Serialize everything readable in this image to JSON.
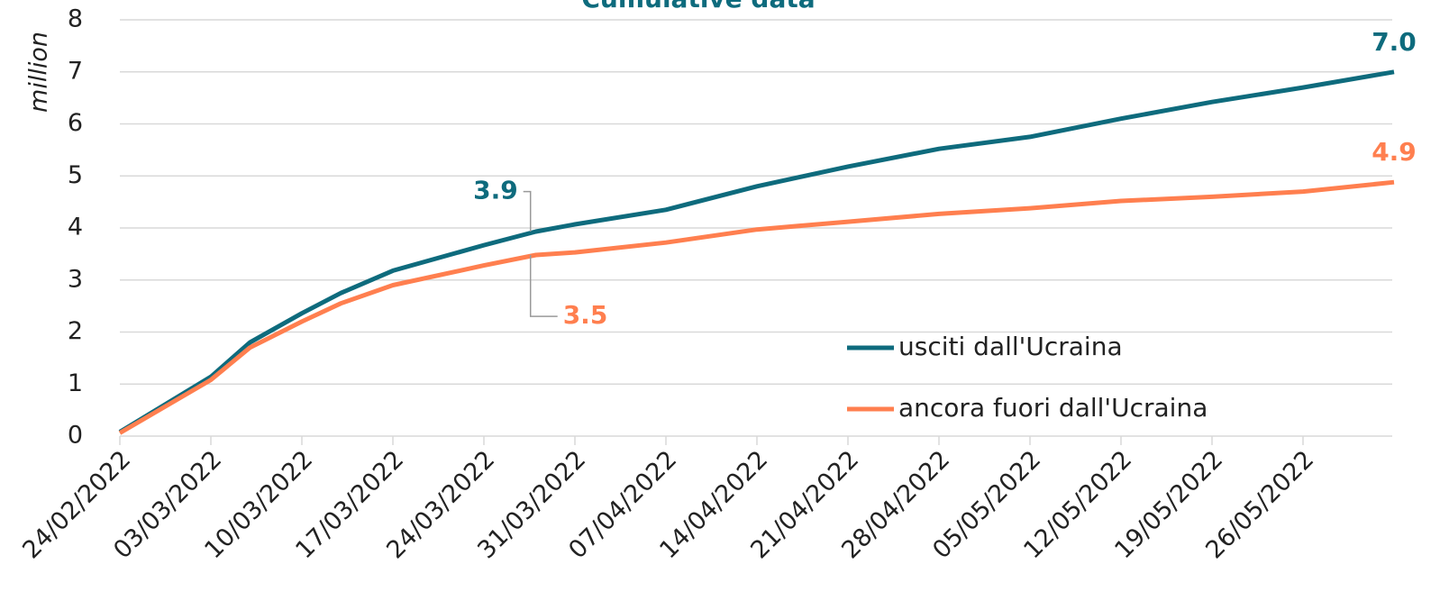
{
  "chart_data": {
    "type": "line",
    "title": "Cumulative data",
    "y_label": "million",
    "x": [
      "24/02/2022",
      "03/03/2022",
      "06/03/2022",
      "10/03/2022",
      "13/03/2022",
      "17/03/2022",
      "24/03/2022",
      "28/03/2022",
      "31/03/2022",
      "07/04/2022",
      "14/04/2022",
      "21/04/2022",
      "28/04/2022",
      "05/05/2022",
      "12/05/2022",
      "19/05/2022",
      "26/05/2022",
      "02/06/2022"
    ],
    "series": [
      {
        "name": "usciti dall'Ucraina",
        "color": "#0e6b7d",
        "values": [
          0.08,
          1.14,
          1.8,
          2.36,
          2.75,
          3.18,
          3.67,
          3.93,
          4.07,
          4.35,
          4.8,
          5.18,
          5.52,
          5.75,
          6.1,
          6.42,
          6.7,
          7.0
        ]
      },
      {
        "name": "ancora fuori dall'Ucraina",
        "color": "#ff7f4f",
        "values": [
          0.06,
          1.08,
          1.7,
          2.2,
          2.55,
          2.9,
          3.28,
          3.48,
          3.53,
          3.72,
          3.97,
          4.12,
          4.27,
          4.38,
          4.52,
          4.6,
          4.7,
          4.88
        ]
      }
    ],
    "annotations": [
      {
        "x": "28/03/2022",
        "series": 0,
        "text": "3.9"
      },
      {
        "x": "28/03/2022",
        "series": 1,
        "text": "3.5"
      },
      {
        "x": "02/06/2022",
        "series": 0,
        "text": "7.0"
      },
      {
        "x": "02/06/2022",
        "series": 1,
        "text": "4.9"
      }
    ],
    "ylim": [
      0,
      8
    ],
    "yticks": [
      0,
      1,
      2,
      3,
      4,
      5,
      6,
      7,
      8
    ],
    "xticks": [
      "24/02/2022",
      "03/03/2022",
      "10/03/2022",
      "17/03/2022",
      "24/03/2022",
      "31/03/2022",
      "07/04/2022",
      "14/04/2022",
      "21/04/2022",
      "28/04/2022",
      "05/05/2022",
      "12/05/2022",
      "19/05/2022",
      "26/05/2022"
    ],
    "grid": true,
    "legend": "lower right"
  }
}
